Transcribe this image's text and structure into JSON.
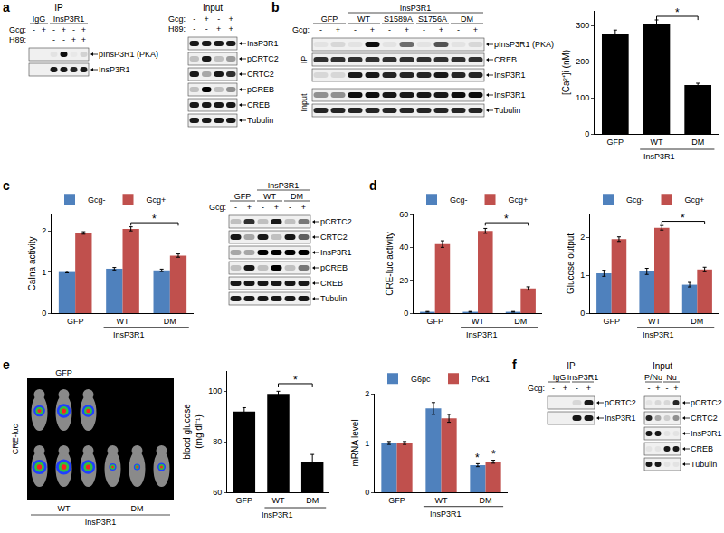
{
  "panel_letters": [
    "a",
    "b",
    "c",
    "d",
    "e",
    "f"
  ],
  "blots": [
    {
      "title": "IP",
      "groups": [
        {
          "text": "IgG",
          "from": 0,
          "to": 1
        },
        {
          "text": "InsP3R1",
          "from": 2,
          "to": 5
        }
      ],
      "conditions": [
        {
          "name": "Gcg:",
          "values": [
            "-",
            "+",
            "-",
            "+",
            "-",
            "+"
          ]
        },
        {
          "name": "H89:",
          "values": [
            null,
            null,
            "-",
            "-",
            "+",
            "+"
          ]
        }
      ],
      "sections": [
        {
          "rows": [
            {
              "label": "pInsP3R1 (PKA)",
              "bands": [
                0,
                0,
                0.05,
                0.95,
                0.03,
                0.12
              ]
            },
            {
              "label": "InsP3R1",
              "bands": [
                0,
                0,
                0.9,
                0.9,
                0.85,
                0.9
              ]
            }
          ]
        }
      ]
    },
    {
      "title": "Input",
      "conditions": [
        {
          "name": "Gcg:",
          "values": [
            "-",
            "+",
            "-",
            "+"
          ]
        },
        {
          "name": "H89:",
          "values": [
            "-",
            "-",
            "+",
            "+"
          ]
        }
      ],
      "sections": [
        {
          "rows": [
            {
              "label": "InsP3R1",
              "bands": [
                0.9,
                0.9,
                0.9,
                0.9
              ]
            },
            {
              "label": "pCRTC2",
              "bands": [
                0.2,
                0.9,
                0.2,
                0.35
              ]
            },
            {
              "label": "CRTC2",
              "bands": [
                0.9,
                0.3,
                0.9,
                0.8
              ]
            },
            {
              "label": "pCREB",
              "bands": [
                0.2,
                1,
                0.2,
                0.4
              ]
            },
            {
              "label": "CREB",
              "bands": [
                0.9,
                0.9,
                0.9,
                0.9
              ]
            },
            {
              "label": "Tubulin",
              "bands": [
                0.9,
                0.9,
                0.9,
                0.9
              ]
            }
          ]
        }
      ]
    },
    {
      "super_groups": [
        {
          "text": "InsP3R1",
          "from": 2,
          "to": 9
        }
      ],
      "groups": [
        {
          "text": "GFP",
          "from": 0,
          "to": 1
        },
        {
          "text": "WT",
          "from": 2,
          "to": 3
        },
        {
          "text": "S1589A",
          "from": 4,
          "to": 5
        },
        {
          "text": "S1756A",
          "from": 6,
          "to": 7
        },
        {
          "text": "DM",
          "from": 8,
          "to": 9
        }
      ],
      "conditions": [
        {
          "name": "Gcg:",
          "values": [
            "-",
            "+",
            "-",
            "+",
            "-",
            "+",
            "-",
            "+",
            "-",
            "+"
          ]
        }
      ],
      "sections": [
        {
          "side_label": "IP",
          "rows": [
            {
              "label": "pInsP3R1 (PKA)",
              "bands": [
                0.05,
                0.1,
                0.05,
                0.95,
                0.05,
                0.55,
                0.05,
                0.65,
                0.05,
                0.1
              ]
            },
            {
              "label": "CREB",
              "bands": [
                0.8,
                0.8,
                0.8,
                0.8,
                0.8,
                0.8,
                0.8,
                0.8,
                0.8,
                0.8
              ]
            },
            {
              "label": "InsP3R1",
              "bands": [
                0.1,
                0.1,
                0.9,
                0.9,
                0.85,
                0.85,
                0.85,
                0.9,
                0.85,
                0.85
              ]
            }
          ]
        },
        {
          "side_label": "Input",
          "rows": [
            {
              "label": "InsP3R1",
              "bands": [
                0.4,
                0.4,
                0.95,
                0.95,
                0.9,
                0.9,
                0.9,
                0.9,
                0.95,
                0.95
              ]
            },
            {
              "label": "Tubulin",
              "bands": [
                0.85,
                0.85,
                0.85,
                0.85,
                0.85,
                0.85,
                0.85,
                0.85,
                0.85,
                0.85
              ]
            }
          ]
        }
      ]
    },
    {
      "super_groups": [
        {
          "text": "InsP3R1",
          "from": 2,
          "to": 5
        }
      ],
      "groups": [
        {
          "text": "GFP",
          "from": 0,
          "to": 1
        },
        {
          "text": "WT",
          "from": 2,
          "to": 3
        },
        {
          "text": "DM",
          "from": 4,
          "to": 5
        }
      ],
      "conditions": [
        {
          "name": "Gcg:",
          "values": [
            "-",
            "+",
            "-",
            "+",
            "-",
            "+"
          ]
        }
      ],
      "sections": [
        {
          "rows": [
            {
              "label": "pCRTC2",
              "bands": [
                0.2,
                0.8,
                0.2,
                0.9,
                0.2,
                0.5
              ]
            },
            {
              "label": "CRTC2",
              "bands": [
                0.9,
                0.3,
                0.9,
                0.2,
                0.9,
                0.6
              ]
            },
            {
              "label": "InsP3R1",
              "bands": [
                0.3,
                0.3,
                1,
                1,
                1,
                1
              ]
            },
            {
              "label": "pCREB",
              "bands": [
                0.2,
                0.9,
                0.2,
                1,
                0.2,
                0.5
              ]
            },
            {
              "label": "CREB",
              "bands": [
                0.9,
                0.9,
                0.9,
                0.9,
                0.9,
                0.9
              ]
            },
            {
              "label": "Tubulin",
              "bands": [
                0.9,
                0.9,
                0.9,
                0.9,
                0.9,
                0.9
              ]
            }
          ]
        }
      ]
    },
    {
      "title": "IP",
      "groups": [
        {
          "text": "IgG",
          "from": 0,
          "to": 1
        },
        {
          "text": "InsP3R1",
          "from": 2,
          "to": 3
        }
      ],
      "conditions": [
        {
          "name": "Gcg:",
          "values": [
            "-",
            "+",
            "-",
            "+"
          ]
        }
      ],
      "sections": [
        {
          "rows": [
            {
              "label": "pCRTC2",
              "bands": [
                0,
                0,
                0.1,
                0.9
              ]
            },
            {
              "label": "InsP3R1",
              "bands": [
                0,
                0,
                0.9,
                0.9
              ]
            }
          ]
        }
      ]
    },
    {
      "title": "Input",
      "groups": [
        {
          "text": "P/Nu",
          "from": 0,
          "to": 1
        },
        {
          "text": "Nu",
          "from": 2,
          "to": 3
        }
      ],
      "conditions": [
        {
          "values": [
            "-",
            "+",
            "-",
            "+"
          ]
        }
      ],
      "sections": [
        {
          "rows": [
            {
              "label": "pCRTC2",
              "bands": [
                0.05,
                0.1,
                0.1,
                0.85
              ]
            },
            {
              "label": "CRTC2",
              "bands": [
                0.85,
                0.3,
                0.15,
                0.4
              ]
            },
            {
              "label": "InsP3R1",
              "bands": [
                0.9,
                0.9,
                0.05,
                0.05
              ]
            },
            {
              "label": "CREB",
              "bands": [
                0.05,
                0.05,
                0.9,
                0.9
              ]
            },
            {
              "label": "Tubulin",
              "bands": [
                0.9,
                0.9,
                0.05,
                0.05
              ]
            }
          ]
        }
      ]
    }
  ],
  "image": {
    "side_label": "CRE-luc",
    "top_label": "GFP",
    "top_signal": [
      0.7,
      0.85,
      0.75
    ],
    "bottom_groups": [
      {
        "label": "WT",
        "signal": [
          0.9,
          0.95,
          0.85
        ]
      },
      {
        "label": "DM",
        "signal": [
          0.45,
          0.4,
          0.5
        ]
      }
    ],
    "group_label": "InsP3R1"
  },
  "chart_data": [
    {
      "type": "bar",
      "y_label": "[Ca²⁺]i (nM)",
      "categories": [
        "GFP",
        "WT",
        "DM"
      ],
      "group_label": {
        "text": "InsP3R1",
        "from": 1,
        "to": 2
      },
      "values": [
        275,
        305,
        135
      ],
      "errors": [
        12,
        10,
        5
      ],
      "color": "#000000",
      "ylim": [
        0,
        340
      ],
      "yticks": [
        0,
        100,
        200,
        300
      ],
      "significance": [
        {
          "from": 1,
          "to": 2,
          "y": 325,
          "text": "*"
        }
      ]
    },
    {
      "type": "bar",
      "y_label": "CaIna activity",
      "categories": [
        "GFP",
        "WT",
        "DM"
      ],
      "group_label": {
        "text": "InsP3R1",
        "from": 1,
        "to": 2
      },
      "series": [
        {
          "name": "Gcg-",
          "color": "#4f81bd",
          "values": [
            1.0,
            1.08,
            1.04
          ],
          "errors": [
            0.02,
            0.03,
            0.03
          ]
        },
        {
          "name": "Gcg+",
          "color": "#c0504d",
          "values": [
            1.95,
            2.05,
            1.4
          ],
          "errors": [
            0.03,
            0.05,
            0.04
          ]
        }
      ],
      "ylim": [
        0,
        2.4
      ],
      "yticks": [
        0,
        1,
        2
      ],
      "legend": "top",
      "significance": [
        {
          "from": 1,
          "to": 2,
          "series": 1,
          "y": 2.2,
          "text": "*"
        }
      ]
    },
    {
      "type": "bar",
      "y_label": "CRE-luc activity",
      "categories": [
        "GFP",
        "WT",
        "DM"
      ],
      "group_label": {
        "text": "InsP3R1",
        "from": 1,
        "to": 2
      },
      "series": [
        {
          "name": "Gcg-",
          "color": "#4f81bd",
          "values": [
            0.8,
            0.8,
            0.8
          ],
          "errors": [
            0.2,
            0.2,
            0.2
          ]
        },
        {
          "name": "Gcg+",
          "color": "#c0504d",
          "values": [
            42,
            50,
            15
          ],
          "errors": [
            2,
            1.5,
            1
          ]
        }
      ],
      "ylim": [
        0,
        60
      ],
      "yticks": [
        0,
        20,
        40,
        60
      ],
      "legend": "top",
      "significance": [
        {
          "from": 1,
          "to": 2,
          "series": 1,
          "y": 55,
          "text": "*"
        }
      ]
    },
    {
      "type": "bar",
      "y_label": "Glucose output",
      "categories": [
        "GFP",
        "WT",
        "DM"
      ],
      "group_label": {
        "text": "InsP3R1",
        "from": 1,
        "to": 2
      },
      "series": [
        {
          "name": "Gcg-",
          "color": "#4f81bd",
          "values": [
            1.05,
            1.1,
            0.75
          ],
          "errors": [
            0.08,
            0.08,
            0.06
          ]
        },
        {
          "name": "Gcg+",
          "color": "#c0504d",
          "values": [
            1.95,
            2.25,
            1.15
          ],
          "errors": [
            0.06,
            0.06,
            0.06
          ]
        }
      ],
      "ylim": [
        0,
        2.6
      ],
      "yticks": [
        0,
        1,
        2
      ],
      "legend": "top",
      "significance": [
        {
          "from": 1,
          "to": 2,
          "series": 1,
          "y": 2.42,
          "text": "*"
        }
      ]
    },
    {
      "type": "bar",
      "y_label": [
        "blood glucose",
        "(mg dl⁻¹)"
      ],
      "categories": [
        "GFP",
        "WT",
        "DM"
      ],
      "group_label": {
        "text": "InsP3R1",
        "from": 1,
        "to": 2
      },
      "values": [
        92,
        99,
        72
      ],
      "errors": [
        1.5,
        1,
        3
      ],
      "color": "#000000",
      "ylim": [
        60,
        108
      ],
      "yticks": [
        60,
        80,
        100
      ],
      "significance": [
        {
          "from": 1,
          "to": 2,
          "y": 103,
          "text": "*"
        }
      ]
    },
    {
      "type": "bar",
      "y_label": "mRNA level",
      "categories": [
        "GFP",
        "WT",
        "DM"
      ],
      "group_label": {
        "text": "InsP3R1",
        "from": 1,
        "to": 2
      },
      "series": [
        {
          "name": "G6pc",
          "color": "#4f81bd",
          "values": [
            1.0,
            1.7,
            0.55
          ],
          "errors": [
            0.03,
            0.12,
            0.03
          ]
        },
        {
          "name": "Pck1",
          "color": "#c0504d",
          "values": [
            1.0,
            1.5,
            0.62
          ],
          "errors": [
            0.03,
            0.08,
            0.03
          ]
        }
      ],
      "ylim": [
        0,
        2
      ],
      "yticks": [
        0,
        1,
        2
      ],
      "legend": "top",
      "stars": [
        {
          "category": 2,
          "series": 0,
          "y": 0.6,
          "text": "*"
        },
        {
          "category": 2,
          "series": 1,
          "y": 0.67,
          "text": "*"
        }
      ]
    }
  ]
}
